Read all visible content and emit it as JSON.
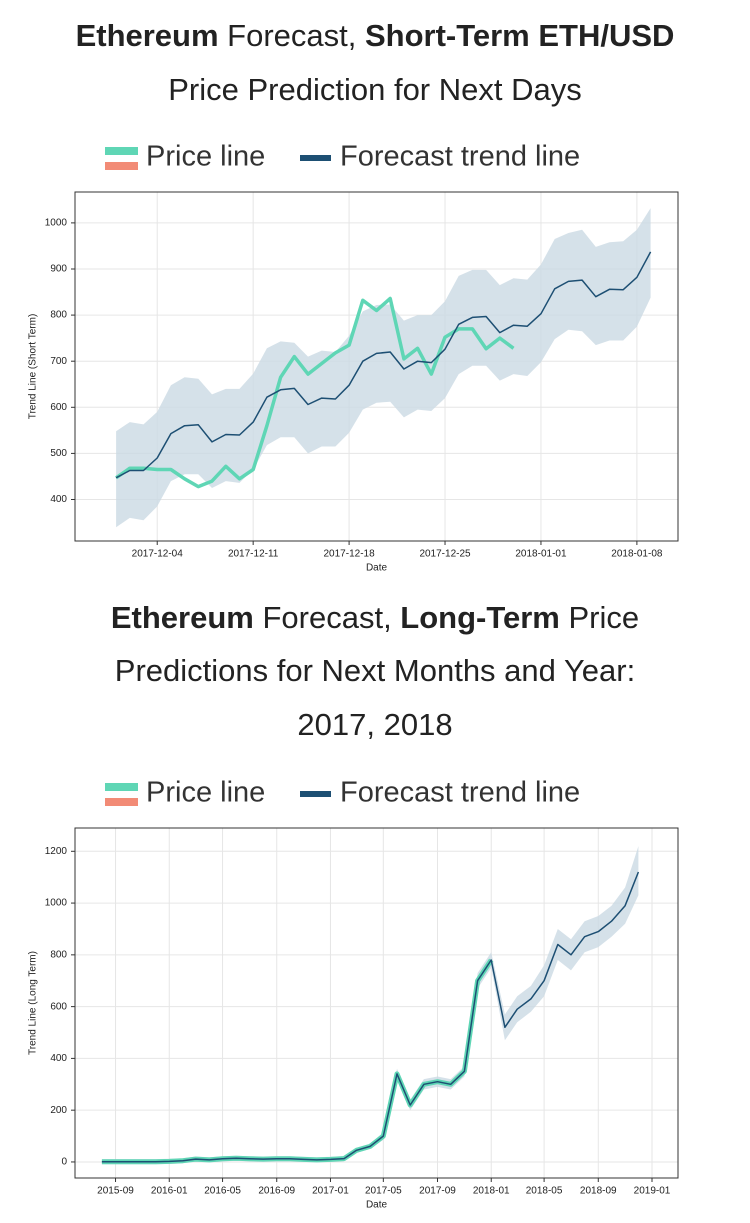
{
  "chart_data": [
    {
      "type": "line",
      "title_lines": [
        [
          {
            "text": "Ethereum",
            "bold": true
          },
          {
            "text": " Forecast, ",
            "bold": false
          },
          {
            "text": "Short-Term ETH/USD",
            "bold": true
          }
        ],
        [
          {
            "text": "Price Prediction for Next Days",
            "bold": false
          }
        ]
      ],
      "x_label": "Date",
      "y_label": "Trend Line (Short Term)",
      "x": [
        "2017-12-01",
        "2017-12-02",
        "2017-12-03",
        "2017-12-04",
        "2017-12-05",
        "2017-12-06",
        "2017-12-07",
        "2017-12-08",
        "2017-12-09",
        "2017-12-10",
        "2017-12-11",
        "2017-12-12",
        "2017-12-13",
        "2017-12-14",
        "2017-12-15",
        "2017-12-16",
        "2017-12-17",
        "2017-12-18",
        "2017-12-19",
        "2017-12-20",
        "2017-12-21",
        "2017-12-22",
        "2017-12-23",
        "2017-12-24",
        "2017-12-25",
        "2017-12-26",
        "2017-12-27",
        "2017-12-28",
        "2017-12-29",
        "2017-12-30",
        "2017-12-31",
        "2018-01-01",
        "2018-01-02",
        "2018-01-03",
        "2018-01-04",
        "2018-01-05",
        "2018-01-06",
        "2018-01-07",
        "2018-01-08",
        "2018-01-09"
      ],
      "series": [
        {
          "name": "Price line",
          "color": "#5fd6b5",
          "secondary_color": "#f28b76",
          "width": 3.5,
          "values": [
            447,
            468,
            468,
            465,
            465,
            445,
            428,
            440,
            472,
            445,
            465,
            560,
            665,
            710,
            672,
            695,
            718,
            735,
            832,
            810,
            836,
            705,
            728,
            672,
            752,
            770,
            770,
            727,
            750,
            728,
            null,
            null,
            null,
            null,
            null,
            null,
            null,
            null,
            null,
            null
          ]
        },
        {
          "name": "Forecast trend line",
          "color": "#1d4f73",
          "band_color": "#cbd9e3",
          "width": 1.5,
          "values": [
            447,
            463,
            463,
            490,
            543,
            560,
            562,
            525,
            541,
            540,
            568,
            622,
            638,
            641,
            606,
            620,
            618,
            648,
            700,
            717,
            720,
            683,
            700,
            697,
            726,
            780,
            795,
            797,
            762,
            778,
            776,
            803,
            857,
            873,
            876,
            840,
            856,
            855,
            882,
            937
          ],
          "upper": [
            548,
            568,
            563,
            590,
            648,
            665,
            662,
            628,
            640,
            640,
            673,
            728,
            743,
            740,
            710,
            723,
            720,
            755,
            808,
            822,
            823,
            788,
            800,
            800,
            830,
            885,
            898,
            898,
            865,
            880,
            877,
            910,
            965,
            978,
            985,
            948,
            958,
            960,
            985,
            1032
          ],
          "lower": [
            340,
            360,
            355,
            385,
            440,
            455,
            455,
            425,
            440,
            436,
            465,
            518,
            535,
            535,
            500,
            515,
            515,
            545,
            595,
            610,
            612,
            578,
            595,
            592,
            620,
            672,
            690,
            690,
            658,
            672,
            668,
            698,
            748,
            768,
            765,
            735,
            745,
            745,
            775,
            838
          ]
        }
      ],
      "xlim": [
        "2017-11-28",
        "2018-01-11"
      ],
      "xticks": [
        "2017-12-04",
        "2017-12-11",
        "2017-12-18",
        "2017-12-25",
        "2018-01-01",
        "2018-01-08"
      ],
      "ylim": [
        310,
        1067
      ],
      "yticks": [
        400,
        500,
        600,
        700,
        800,
        900,
        1000
      ],
      "grid": true
    },
    {
      "type": "line",
      "title_lines": [
        [
          {
            "text": "Ethereum",
            "bold": true
          },
          {
            "text": " Forecast, ",
            "bold": false
          },
          {
            "text": "Long-Term",
            "bold": true
          },
          {
            "text": " Price",
            "bold": false
          }
        ],
        [
          {
            "text": "Predictions for Next Months and Year:",
            "bold": false
          }
        ],
        [
          {
            "text": "2017, 2018",
            "bold": false
          }
        ]
      ],
      "x_label": "Date",
      "y_label": "Trend Line (Long Term)",
      "x": [
        "2015-08",
        "2015-09",
        "2015-10",
        "2015-11",
        "2015-12",
        "2016-01",
        "2016-02",
        "2016-03",
        "2016-04",
        "2016-05",
        "2016-06",
        "2016-07",
        "2016-08",
        "2016-09",
        "2016-10",
        "2016-11",
        "2016-12",
        "2017-01",
        "2017-02",
        "2017-03",
        "2017-04",
        "2017-05",
        "2017-06",
        "2017-07",
        "2017-08",
        "2017-09",
        "2017-10",
        "2017-11",
        "2017-12",
        "2018-01",
        "2018-02",
        "2018-03",
        "2018-04",
        "2018-05",
        "2018-06",
        "2018-07",
        "2018-08",
        "2018-09",
        "2018-10",
        "2018-11",
        "2018-12"
      ],
      "series": [
        {
          "name": "Price line",
          "color": "#5fd6b5",
          "secondary_color": "#f28b76",
          "width": 5,
          "values": [
            1,
            1,
            1,
            1,
            1,
            2,
            5,
            11,
            8,
            12,
            14,
            12,
            11,
            12,
            12,
            10,
            8,
            10,
            13,
            45,
            60,
            100,
            340,
            220,
            300,
            310,
            300,
            350,
            700,
            780,
            null,
            null,
            null,
            null,
            null,
            null,
            null,
            null,
            null,
            null,
            null
          ]
        },
        {
          "name": "Forecast trend line",
          "color": "#1d4f73",
          "band_color": "#cbd9e3",
          "width": 1.5,
          "values": [
            1,
            1,
            1,
            1,
            1,
            2,
            5,
            11,
            8,
            12,
            14,
            12,
            11,
            12,
            12,
            10,
            8,
            10,
            13,
            45,
            60,
            100,
            340,
            220,
            300,
            310,
            300,
            350,
            700,
            780,
            520,
            590,
            630,
            700,
            840,
            800,
            870,
            890,
            930,
            990,
            1120
          ],
          "upper": [
            11,
            11,
            11,
            11,
            11,
            12,
            15,
            21,
            18,
            22,
            24,
            22,
            21,
            22,
            22,
            20,
            18,
            20,
            23,
            55,
            70,
            115,
            360,
            240,
            320,
            330,
            320,
            370,
            730,
            810,
            570,
            640,
            680,
            760,
            900,
            860,
            930,
            950,
            990,
            1060,
            1220
          ],
          "lower": [
            -9,
            -9,
            -9,
            -9,
            -9,
            -8,
            -5,
            1,
            -2,
            2,
            4,
            2,
            1,
            2,
            2,
            0,
            -2,
            0,
            3,
            35,
            50,
            85,
            320,
            200,
            280,
            290,
            280,
            330,
            670,
            750,
            470,
            540,
            580,
            640,
            780,
            740,
            810,
            830,
            870,
            920,
            1030
          ]
        }
      ],
      "xlim": [
        "2015-06",
        "2019-03"
      ],
      "xticks": [
        "2015-09",
        "2016-01",
        "2016-05",
        "2016-09",
        "2017-01",
        "2017-05",
        "2017-09",
        "2018-01",
        "2018-05",
        "2018-09",
        "2019-01"
      ],
      "ylim": [
        -62,
        1290
      ],
      "yticks": [
        0,
        200,
        400,
        600,
        800,
        1000,
        1200
      ],
      "grid": true
    }
  ]
}
